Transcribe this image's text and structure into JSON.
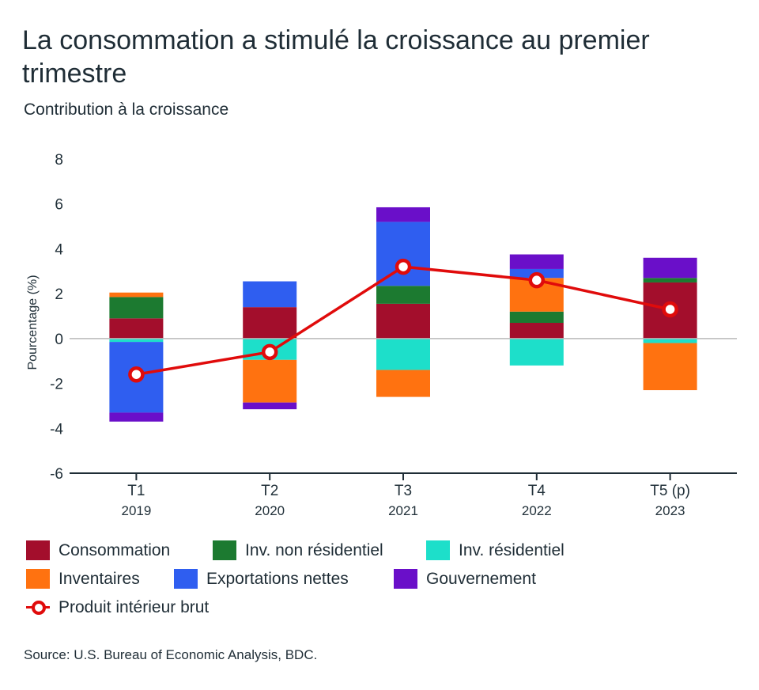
{
  "header": {
    "title": "La consommation a stimulé la croissance au premier trimestre",
    "subtitle": "Contribution à la croissance"
  },
  "legend": {
    "items": [
      {
        "label": "Consommation",
        "color": "#a30e2c"
      },
      {
        "label": "Inv. non résidentiel",
        "color": "#1c7a30"
      },
      {
        "label": "Inv. résidentiel",
        "color": "#1ddfca"
      },
      {
        "label": "Inventaires",
        "color": "#ff7210"
      },
      {
        "label": "Exportations nettes",
        "color": "#2f5ef0"
      },
      {
        "label": "Gouvernement",
        "color": "#6a0fc9"
      },
      {
        "label": "Produit intérieur brut",
        "color": "#e00b0b"
      }
    ]
  },
  "footer": {
    "source": "Source: U.S. Bureau of Economic Analysis, BDC."
  },
  "chart_data": {
    "type": "bar",
    "stacked": true,
    "categories": [
      "T1",
      "T2",
      "T3",
      "T4",
      "T5 (p)"
    ],
    "category_years": [
      "2019",
      "2020",
      "2021",
      "2022",
      "2023"
    ],
    "ylabel": "Pourcentage (%)",
    "ylim": [
      -6,
      8
    ],
    "yticks": [
      8,
      6,
      4,
      2,
      0,
      -2,
      -4,
      -6
    ],
    "zero_line": true,
    "series": [
      {
        "name": "Consommation",
        "color": "#a30e2c",
        "values": [
          0.9,
          1.4,
          1.55,
          0.7,
          2.5
        ]
      },
      {
        "name": "Inv. non résidentiel",
        "color": "#1c7a30",
        "values": [
          0.95,
          0.0,
          0.8,
          0.5,
          0.2
        ]
      },
      {
        "name": "Inv. résidentiel",
        "color": "#1ddfca",
        "values": [
          -0.15,
          -0.95,
          -1.4,
          -1.2,
          -0.2
        ]
      },
      {
        "name": "Inventaires",
        "color": "#ff7210",
        "values": [
          0.2,
          -1.9,
          -1.2,
          1.5,
          -2.1
        ]
      },
      {
        "name": "Exportations nettes",
        "color": "#2f5ef0",
        "values": [
          -3.15,
          1.15,
          2.85,
          0.4,
          0.0
        ]
      },
      {
        "name": "Gouvernement",
        "color": "#6a0fc9",
        "values": [
          -0.4,
          -0.3,
          0.65,
          0.65,
          0.9
        ]
      }
    ],
    "line": {
      "name": "Produit intérieur brut",
      "color": "#e00b0b",
      "values": [
        -1.6,
        -0.6,
        3.2,
        2.6,
        1.3
      ]
    }
  }
}
